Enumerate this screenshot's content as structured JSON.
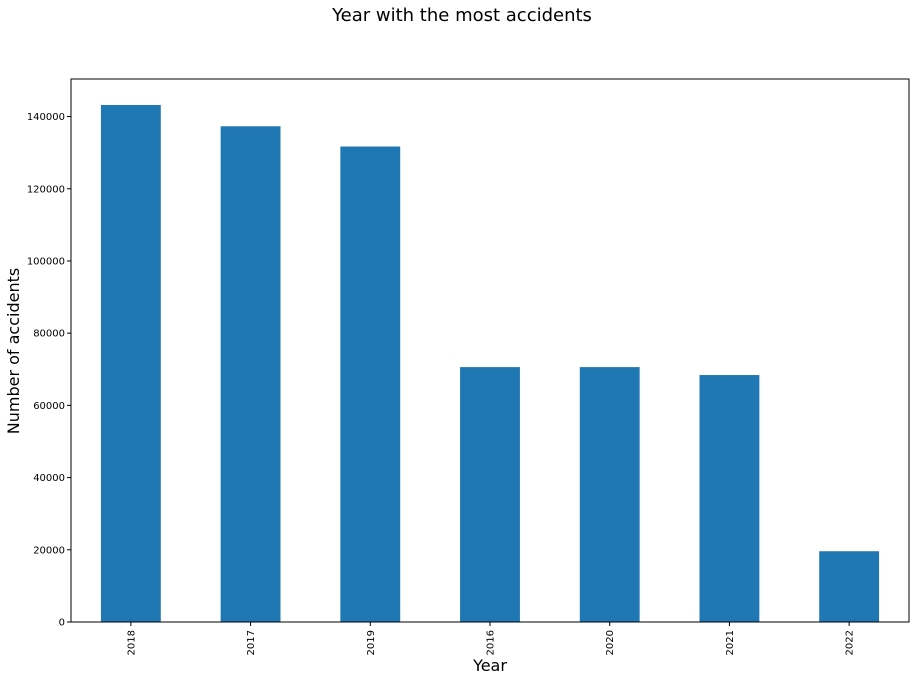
{
  "chart_data": {
    "type": "bar",
    "title": "Year with the most accidents",
    "xlabel": "Year",
    "ylabel": "Number of accidents",
    "categories": [
      "2018",
      "2017",
      "2019",
      "2016",
      "2020",
      "2021",
      "2022"
    ],
    "values": [
      143200,
      137300,
      131700,
      70600,
      70600,
      68400,
      19600
    ],
    "ylim": [
      0,
      150400
    ],
    "yticks": [
      0,
      20000,
      40000,
      60000,
      80000,
      100000,
      120000,
      140000
    ],
    "bar_color": "#1f77b4",
    "grid": false,
    "legend": "none"
  }
}
